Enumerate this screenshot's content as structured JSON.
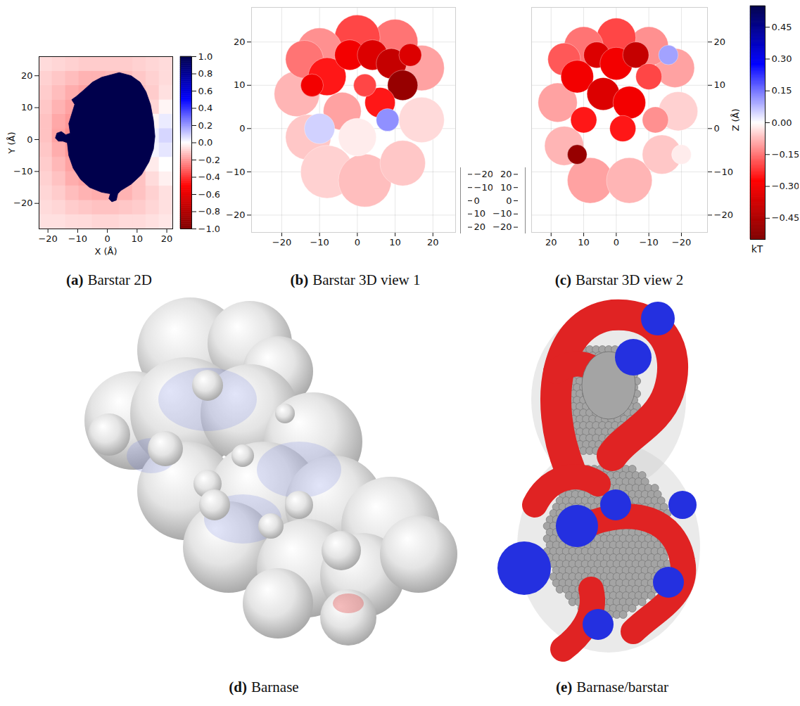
{
  "chart_data": [
    {
      "type": "heatmap",
      "panel_label": "(a)",
      "title": "Barstar 2D",
      "x_label": "X (Å)",
      "y_label": "Y (Å)",
      "xlim": [
        -23,
        22
      ],
      "ylim": [
        -28,
        26
      ],
      "xticks": [
        {
          "value": -20,
          "label": "−20"
        },
        {
          "value": -10,
          "label": "−10"
        },
        0,
        10,
        20
      ],
      "yticks": [
        {
          "value": -20,
          "label": "−20"
        },
        {
          "value": -10,
          "label": "−10"
        },
        0,
        10,
        20
      ],
      "x": [
        -20.75,
        -16.25,
        -11.75,
        -7.25,
        -2.75,
        1.75,
        6.25,
        10.75,
        15.25,
        19.75
      ],
      "y": [
        -25.75,
        -21.25,
        -16.75,
        -12.25,
        -7.75,
        -3.25,
        1.25,
        5.75,
        10.25,
        14.75,
        19.25,
        23.75
      ],
      "cells": [
        [
          -0.06,
          -0.06,
          -0.07,
          -0.07,
          -0.08,
          -0.08,
          -0.07,
          -0.07,
          -0.06,
          -0.05
        ],
        [
          -0.07,
          -0.08,
          -0.1,
          -0.11,
          -0.12,
          -0.12,
          -0.11,
          -0.1,
          -0.08,
          -0.06
        ],
        [
          -0.08,
          -0.1,
          -0.13,
          -0.15,
          -0.16,
          -0.16,
          -0.15,
          -0.12,
          -0.09,
          -0.06
        ],
        [
          -0.09,
          -0.12,
          -0.16,
          -0.18,
          -0.18,
          -0.17,
          -0.15,
          -0.12,
          -0.07,
          -0.03
        ],
        [
          -0.1,
          -0.14,
          -0.18,
          -0.2,
          -0.2,
          -0.18,
          -0.15,
          -0.1,
          -0.04,
          0
        ],
        [
          -0.11,
          -0.16,
          -0.2,
          -0.2,
          -0.2,
          -0.18,
          -0.14,
          -0.08,
          0.02,
          0.05
        ],
        [
          -0.12,
          -0.18,
          -0.22,
          -0.2,
          -0.2,
          -0.18,
          -0.12,
          -0.06,
          0.03,
          0.08
        ],
        [
          -0.12,
          -0.17,
          -0.2,
          -0.2,
          -0.2,
          -0.18,
          -0.14,
          -0.08,
          -0.02,
          0.04
        ],
        [
          -0.11,
          -0.15,
          -0.18,
          -0.2,
          -0.2,
          -0.18,
          -0.15,
          -0.12,
          -0.08,
          -0.02
        ],
        [
          -0.1,
          -0.13,
          -0.16,
          -0.18,
          -0.18,
          -0.17,
          -0.15,
          -0.13,
          -0.1,
          -0.06
        ],
        [
          -0.09,
          -0.11,
          -0.13,
          -0.15,
          -0.15,
          -0.14,
          -0.13,
          -0.11,
          -0.09,
          -0.07
        ],
        [
          -0.07,
          -0.08,
          -0.09,
          -0.1,
          -0.1,
          -0.1,
          -0.1,
          -0.09,
          -0.08,
          -0.07
        ]
      ],
      "region": {
        "value": 1,
        "outline": [
          [
            0,
            20
          ],
          [
            4,
            21
          ],
          [
            8,
            20
          ],
          [
            11,
            18
          ],
          [
            13,
            15
          ],
          [
            14.5,
            11
          ],
          [
            15.5,
            6
          ],
          [
            16,
            1
          ],
          [
            15.5,
            -3
          ],
          [
            14,
            -7
          ],
          [
            11.5,
            -11
          ],
          [
            8,
            -14
          ],
          [
            4.5,
            -16
          ],
          [
            3.5,
            -17
          ],
          [
            3,
            -19
          ],
          [
            1.5,
            -19.5
          ],
          [
            0.5,
            -18.5
          ],
          [
            1,
            -17
          ],
          [
            -2,
            -16.5
          ],
          [
            -6,
            -15
          ],
          [
            -9,
            -12.5
          ],
          [
            -11.5,
            -9
          ],
          [
            -13,
            -5
          ],
          [
            -13.5,
            -1
          ],
          [
            -15,
            -0.5
          ],
          [
            -16.5,
            -0.5
          ],
          [
            -17.5,
            0.5
          ],
          [
            -17,
            2
          ],
          [
            -15.5,
            2.5
          ],
          [
            -14,
            1.5
          ],
          [
            -12.5,
            2
          ],
          [
            -13,
            5
          ],
          [
            -12,
            8
          ],
          [
            -11,
            11
          ],
          [
            -12,
            12.5
          ],
          [
            -10.5,
            13.5
          ],
          [
            -8,
            15.5
          ],
          [
            -5,
            18
          ],
          [
            -2,
            19.5
          ]
        ]
      },
      "colorbar": {
        "range": [
          -1,
          1
        ],
        "ticks": [
          {
            "value": -1,
            "label": "−1.0"
          },
          {
            "value": -0.8,
            "label": "−0.8"
          },
          {
            "value": -0.6,
            "label": "−0.6"
          },
          {
            "value": -0.4,
            "label": "−0.4"
          },
          {
            "value": -0.2,
            "label": "−0.2"
          },
          {
            "value": 0,
            "label": "0.0"
          },
          0.2,
          0.4,
          0.6,
          0.8,
          {
            "value": 1,
            "label": "1.0"
          }
        ],
        "colors": [
          "#800000",
          "#ff0000",
          "#ffffff",
          "#0000ff",
          "#00004c"
        ]
      }
    },
    {
      "type": "scatter3d",
      "panel_label": "(b)",
      "title": "Barstar 3D view 1",
      "grid": true,
      "xlim": [
        -28,
        26
      ],
      "xticks": [
        {
          "value": -20,
          "label": "−20"
        },
        {
          "value": -10,
          "label": "−10"
        },
        0,
        10,
        20
      ],
      "zlim": [
        -24,
        28
      ],
      "zticks": [
        {
          "value": -20,
          "label": "−20"
        },
        {
          "value": -10,
          "label": "−10"
        },
        0,
        10,
        20
      ],
      "ylim": [
        25,
        -25
      ],
      "yticks": [
        {
          "value": -20,
          "label": "−20"
        },
        {
          "value": -10,
          "label": "−10"
        },
        0,
        10,
        20
      ],
      "spheres": [
        {
          "x": -16,
          "z": 8,
          "r": 6,
          "value": -0.08
        },
        {
          "x": -13,
          "z": -2,
          "r": 6,
          "value": -0.06
        },
        {
          "x": -8,
          "z": -10,
          "r": 7,
          "value": -0.05
        },
        {
          "x": 2,
          "z": -12,
          "r": 7,
          "value": -0.07
        },
        {
          "x": 12,
          "z": -8,
          "r": 6,
          "value": -0.06
        },
        {
          "x": 17,
          "z": 2,
          "r": 6,
          "value": -0.04
        },
        {
          "x": 17,
          "z": 14,
          "r": 6,
          "value": -0.1
        },
        {
          "x": 10,
          "z": 20,
          "r": 6,
          "value": -0.15
        },
        {
          "x": 0,
          "z": 21,
          "r": 6,
          "value": -0.2
        },
        {
          "x": -10,
          "z": 18,
          "r": 6,
          "value": -0.12
        },
        {
          "x": -14,
          "z": 16,
          "r": 5,
          "value": -0.15
        },
        {
          "x": -8,
          "z": 12,
          "r": 5,
          "value": -0.25
        },
        {
          "x": -2,
          "z": 17,
          "r": 4,
          "value": -0.3
        },
        {
          "x": 4,
          "z": 17,
          "r": 4,
          "value": -0.35
        },
        {
          "x": 9,
          "z": 15,
          "r": 4,
          "value": -0.4
        },
        {
          "x": 12,
          "z": 10,
          "r": 4,
          "value": -0.5
        },
        {
          "x": 6,
          "z": 6,
          "r": 4,
          "value": -0.25
        },
        {
          "x": -4,
          "z": 4,
          "r": 5,
          "value": -0.1
        },
        {
          "x": -10,
          "z": 0,
          "r": 4,
          "value": 0.05
        },
        {
          "x": 0,
          "z": -2,
          "r": 5,
          "value": -0.02
        },
        {
          "x": 8,
          "z": 2,
          "r": 3,
          "value": 0.12
        },
        {
          "x": 2,
          "z": 10,
          "r": 3,
          "value": -0.2
        },
        {
          "x": -12,
          "z": 10,
          "r": 3,
          "value": -0.3
        },
        {
          "x": 14,
          "z": 17,
          "r": 3,
          "value": -0.35
        }
      ]
    },
    {
      "type": "scatter3d",
      "panel_label": "(c)",
      "title": "Barstar 3D view 2",
      "grid": true,
      "z_label": "Z (Å)",
      "xlim": [
        26,
        -28
      ],
      "xticks": [
        20,
        10,
        0,
        {
          "value": -10,
          "label": "−10"
        },
        {
          "value": -20,
          "label": "−20"
        }
      ],
      "zlim": [
        -24,
        28
      ],
      "zticks": [
        20,
        10,
        0,
        {
          "value": -10,
          "label": "−10"
        },
        {
          "value": -20,
          "label": "−20"
        }
      ],
      "ylim": [
        -25,
        25
      ],
      "yticks": [
        20,
        10,
        0,
        {
          "value": -10,
          "label": "−10"
        },
        {
          "value": -20,
          "label": "−20"
        }
      ],
      "spheres": [
        {
          "x": 18,
          "z": 6,
          "r": 6,
          "value": -0.1
        },
        {
          "x": 16,
          "z": -4,
          "r": 6,
          "value": -0.08
        },
        {
          "x": 8,
          "z": -12,
          "r": 7,
          "value": -0.1
        },
        {
          "x": -4,
          "z": -12,
          "r": 7,
          "value": -0.08
        },
        {
          "x": -14,
          "z": -6,
          "r": 6,
          "value": -0.06
        },
        {
          "x": -19,
          "z": 4,
          "r": 6,
          "value": -0.05
        },
        {
          "x": -18,
          "z": 14,
          "r": 6,
          "value": -0.1
        },
        {
          "x": -10,
          "z": 19,
          "r": 6,
          "value": -0.12
        },
        {
          "x": 0,
          "z": 21,
          "r": 6,
          "value": -0.2
        },
        {
          "x": 10,
          "z": 19,
          "r": 6,
          "value": -0.15
        },
        {
          "x": 16,
          "z": 16,
          "r": 5,
          "value": -0.18
        },
        {
          "x": 12,
          "z": 12,
          "r": 5,
          "value": -0.3
        },
        {
          "x": 6,
          "z": 17,
          "r": 4,
          "value": -0.35
        },
        {
          "x": 0,
          "z": 15,
          "r": 5,
          "value": -0.3
        },
        {
          "x": -6,
          "z": 17,
          "r": 4,
          "value": -0.4
        },
        {
          "x": -10,
          "z": 12,
          "r": 4,
          "value": -0.2
        },
        {
          "x": 4,
          "z": 8,
          "r": 5,
          "value": -0.35
        },
        {
          "x": -4,
          "z": 6,
          "r": 5,
          "value": -0.3
        },
        {
          "x": 10,
          "z": 2,
          "r": 4,
          "value": -0.25
        },
        {
          "x": 12,
          "z": -6,
          "r": 3,
          "value": -0.5
        },
        {
          "x": -12,
          "z": 2,
          "r": 4,
          "value": -0.12
        },
        {
          "x": -16,
          "z": 17,
          "r": 3,
          "value": 0.1
        },
        {
          "x": -20,
          "z": -6,
          "r": 3,
          "value": -0.02
        },
        {
          "x": -2,
          "z": 0,
          "r": 4,
          "value": -0.25
        }
      ]
    },
    {
      "type": "colorbar",
      "label": "kT",
      "range": [
        -0.55,
        0.55
      ],
      "ticks": [
        0.45,
        {
          "value": 0.3,
          "label": "0.30"
        },
        0.15,
        {
          "value": 0,
          "label": "0.00"
        },
        {
          "value": -0.15,
          "label": "−0.15"
        },
        {
          "value": -0.3,
          "label": "−0.30"
        },
        {
          "value": -0.45,
          "label": "−0.45"
        }
      ],
      "colors": [
        "#800000",
        "#ff0000",
        "#ffffff",
        "#0000ff",
        "#00004c"
      ]
    },
    {
      "type": "image",
      "panel_label": "(d)",
      "title": "Barnase"
    },
    {
      "type": "image",
      "panel_label": "(e)",
      "title": "Barnase/barstar"
    }
  ]
}
